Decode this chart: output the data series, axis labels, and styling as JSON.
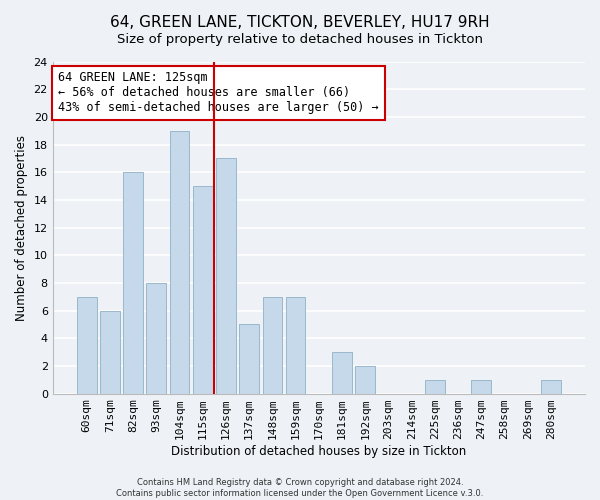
{
  "title": "64, GREEN LANE, TICKTON, BEVERLEY, HU17 9RH",
  "subtitle": "Size of property relative to detached houses in Tickton",
  "xlabel": "Distribution of detached houses by size in Tickton",
  "ylabel": "Number of detached properties",
  "bar_labels": [
    "60sqm",
    "71sqm",
    "82sqm",
    "93sqm",
    "104sqm",
    "115sqm",
    "126sqm",
    "137sqm",
    "148sqm",
    "159sqm",
    "170sqm",
    "181sqm",
    "192sqm",
    "203sqm",
    "214sqm",
    "225sqm",
    "236sqm",
    "247sqm",
    "258sqm",
    "269sqm",
    "280sqm"
  ],
  "bar_values": [
    7,
    6,
    16,
    8,
    19,
    15,
    17,
    5,
    7,
    7,
    0,
    3,
    2,
    0,
    0,
    1,
    0,
    1,
    0,
    0,
    1
  ],
  "bar_color": "#c6d9ea",
  "bar_edge_color": "#9ab8cc",
  "vline_x_index": 6,
  "vline_color": "#cc0000",
  "annotation_title": "64 GREEN LANE: 125sqm",
  "annotation_line1": "← 56% of detached houses are smaller (66)",
  "annotation_line2": "43% of semi-detached houses are larger (50) →",
  "annotation_box_edge_color": "#cc0000",
  "ylim": [
    0,
    24
  ],
  "yticks": [
    0,
    2,
    4,
    6,
    8,
    10,
    12,
    14,
    16,
    18,
    20,
    22,
    24
  ],
  "footer1": "Contains HM Land Registry data © Crown copyright and database right 2024.",
  "footer2": "Contains public sector information licensed under the Open Government Licence v.3.0.",
  "bg_color": "#eef2f6",
  "grid_color": "#ffffff",
  "title_fontsize": 11,
  "subtitle_fontsize": 9.5,
  "axis_label_fontsize": 8.5,
  "tick_fontsize": 8,
  "footer_fontsize": 6
}
